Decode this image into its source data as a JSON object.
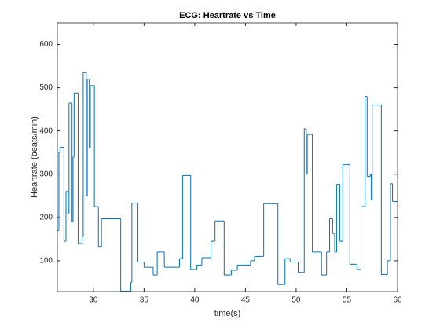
{
  "chart_data": {
    "type": "stairs",
    "title": "ECG: Heartrate vs Time",
    "x_label": "time(s)",
    "y_label": "Heartrate (beats/min)",
    "color": "#0072bd",
    "x": [
      26.45,
      26.6,
      26.7,
      27.1,
      27.3,
      27.5,
      27.6,
      27.9,
      28.0,
      28.1,
      28.5,
      28.9,
      29.0,
      29.3,
      29.4,
      29.6,
      29.7,
      30.1,
      30.5,
      30.8,
      32.7,
      33.7,
      33.8,
      34.4,
      35.0,
      35.9,
      36.3,
      37.0,
      38.5,
      38.8,
      39.6,
      40.2,
      40.7,
      41.6,
      42.0,
      42.9,
      43.6,
      44.2,
      45.5,
      45.9,
      46.8,
      48.2,
      48.9,
      49.4,
      50.2,
      50.8,
      51.0,
      51.1,
      51.6,
      52.5,
      53.0,
      53.3,
      53.6,
      53.8,
      54.0,
      54.3,
      54.6,
      55.3,
      56.0,
      56.4,
      56.8,
      57.0,
      57.3,
      57.4,
      57.5,
      58.4,
      59.0,
      59.3,
      59.5
    ],
    "values": [
      170,
      350,
      362,
      145,
      260,
      210,
      465,
      190,
      340,
      488,
      140,
      155,
      535,
      250,
      520,
      360,
      505,
      225,
      133,
      197,
      30,
      50,
      233,
      97,
      85,
      67,
      120,
      85,
      105,
      297,
      80,
      90,
      107,
      145,
      192,
      67,
      78,
      90,
      100,
      110,
      232,
      45,
      105,
      97,
      73,
      405,
      300,
      392,
      120,
      67,
      120,
      197,
      163,
      120,
      277,
      145,
      322,
      92,
      80,
      225,
      480,
      295,
      300,
      240,
      460,
      68,
      100,
      278,
      237
    ],
    "xlim": [
      26.45,
      60
    ],
    "ylim": [
      29,
      650
    ],
    "xticks": [
      30,
      35,
      40,
      45,
      50,
      55,
      60
    ],
    "yticks": [
      100,
      200,
      300,
      400,
      500,
      600
    ]
  }
}
